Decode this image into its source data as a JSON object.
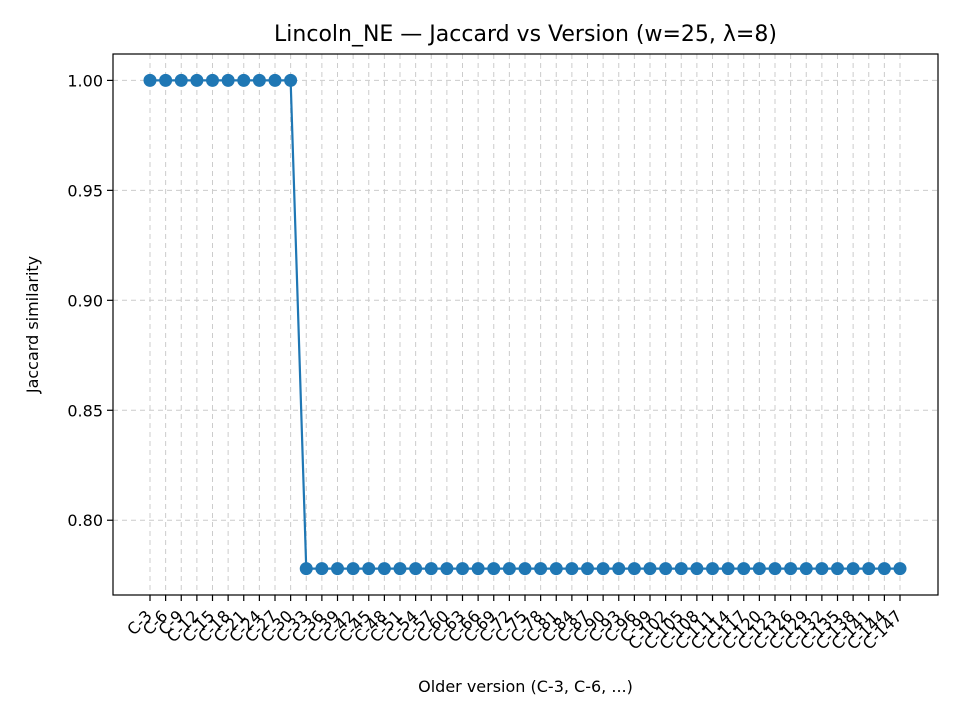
{
  "colors": {
    "series": "#1f77b4",
    "grid": "#cccccc",
    "axes": "#000000",
    "background": "#ffffff"
  },
  "chart_data": {
    "type": "line",
    "title": "Lincoln_NE — Jaccard vs Version (w=25, λ=8)",
    "xlabel": "Older version (C-3, C-6, ...)",
    "ylabel": "Jaccard similarity",
    "ylim": [
      0.766,
      1.012
    ],
    "yticks": [
      "0.80",
      "0.85",
      "0.90",
      "0.95",
      "1.00"
    ],
    "grid": true,
    "legend": "none",
    "marker": "circle",
    "categories": [
      "C-3",
      "C-6",
      "C-9",
      "C-12",
      "C-15",
      "C-18",
      "C-21",
      "C-24",
      "C-27",
      "C-30",
      "C-33",
      "C-36",
      "C-39",
      "C-42",
      "C-45",
      "C-48",
      "C-51",
      "C-54",
      "C-57",
      "C-60",
      "C-63",
      "C-66",
      "C-69",
      "C-72",
      "C-75",
      "C-78",
      "C-81",
      "C-84",
      "C-87",
      "C-90",
      "C-93",
      "C-96",
      "C-99",
      "C-102",
      "C-105",
      "C-108",
      "C-111",
      "C-114",
      "C-117",
      "C-120",
      "C-123",
      "C-126",
      "C-129",
      "C-132",
      "C-135",
      "C-138",
      "C-141",
      "C-144",
      "C-147"
    ],
    "series": [
      {
        "values": [
          1.0,
          1.0,
          1.0,
          1.0,
          1.0,
          1.0,
          1.0,
          1.0,
          1.0,
          1.0,
          0.778,
          0.778,
          0.778,
          0.778,
          0.778,
          0.778,
          0.778,
          0.778,
          0.778,
          0.778,
          0.778,
          0.778,
          0.778,
          0.778,
          0.778,
          0.778,
          0.778,
          0.778,
          0.778,
          0.778,
          0.778,
          0.778,
          0.778,
          0.778,
          0.778,
          0.778,
          0.778,
          0.778,
          0.778,
          0.778,
          0.778,
          0.778,
          0.778,
          0.778,
          0.778,
          0.778,
          0.778,
          0.778,
          0.778
        ]
      }
    ]
  }
}
